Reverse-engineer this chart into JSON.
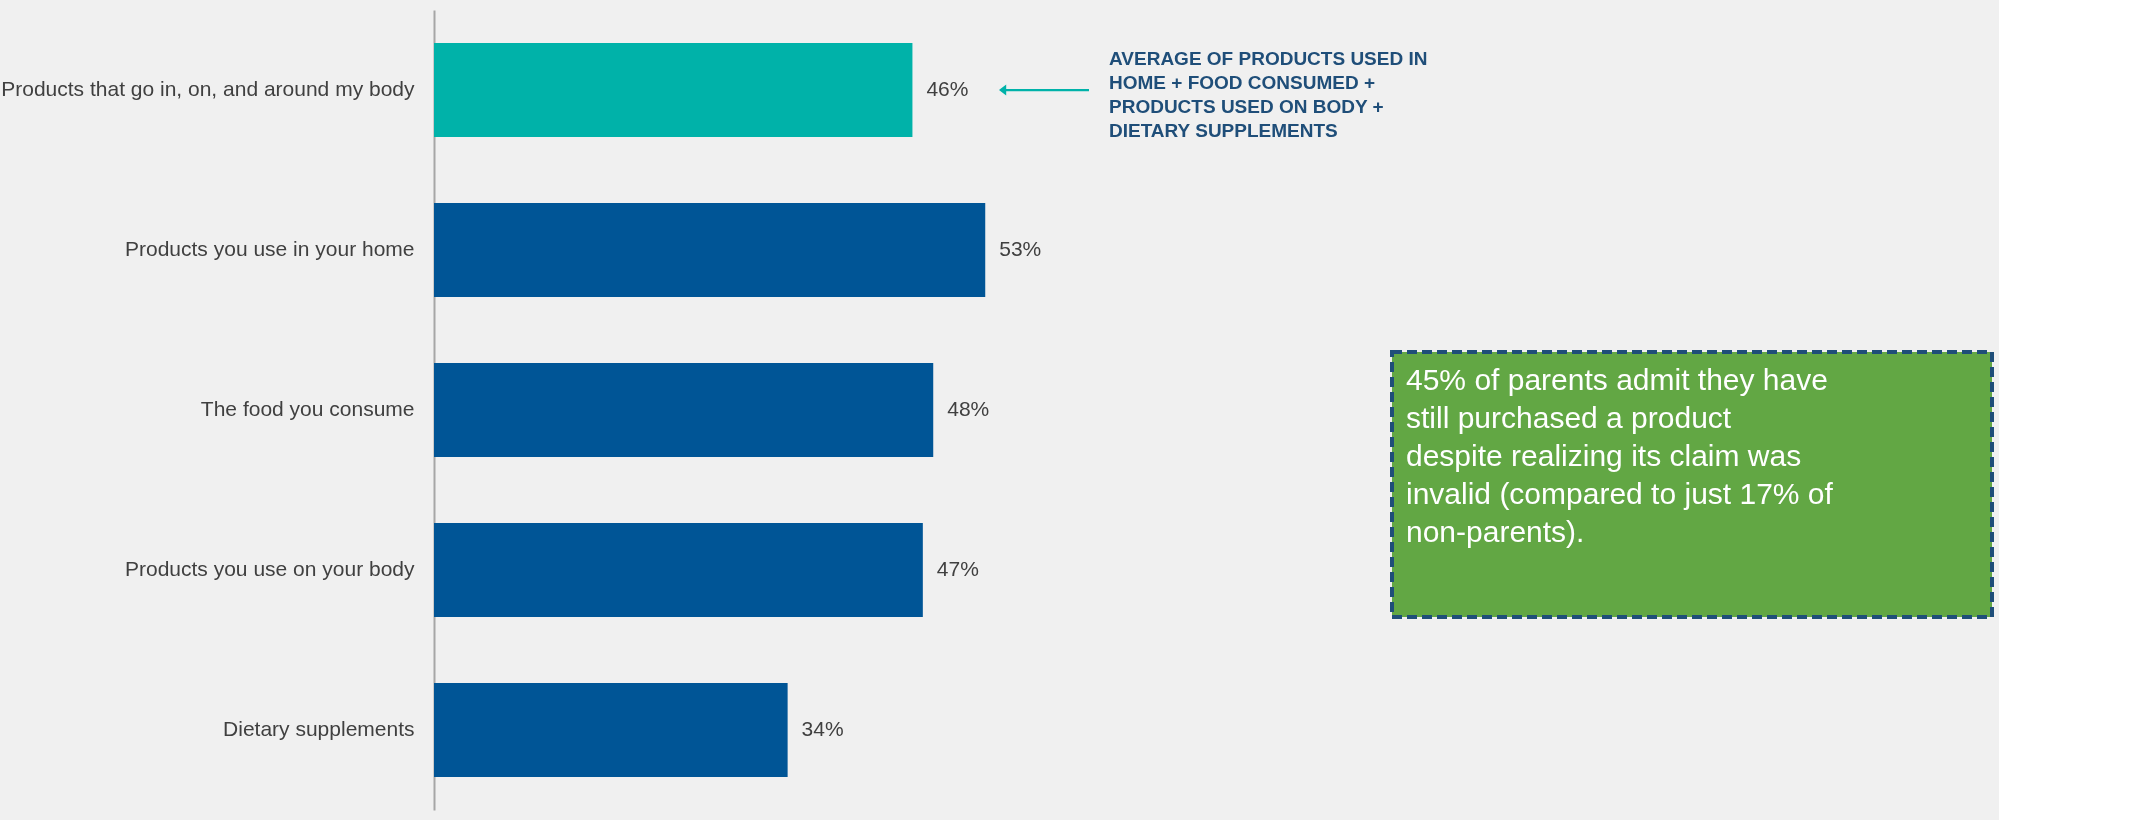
{
  "chart_data": {
    "type": "bar",
    "orientation": "horizontal",
    "categories": [
      "Products that go in, on, and around my body",
      "Products you use in your home",
      "The food you consume",
      "Products you use on your body",
      "Dietary supplements"
    ],
    "values": [
      46,
      53,
      48,
      47,
      34
    ],
    "colors": [
      "#00b2a9",
      "#005596",
      "#005596",
      "#005596",
      "#005596"
    ],
    "value_labels": [
      "46%",
      "53%",
      "48%",
      "47%",
      "34%"
    ],
    "annotations": [
      "AVERAGE OF PRODUCTS USED IN HOME + FOOD CONSUMED + PRODUCTS USED ON BODY + DIETARY SUPPLEMENTS",
      "45% of parents admit they have still purchased a product despite realizing its claim was invalid (compared to just 17% of non-parents)."
    ]
  }
}
